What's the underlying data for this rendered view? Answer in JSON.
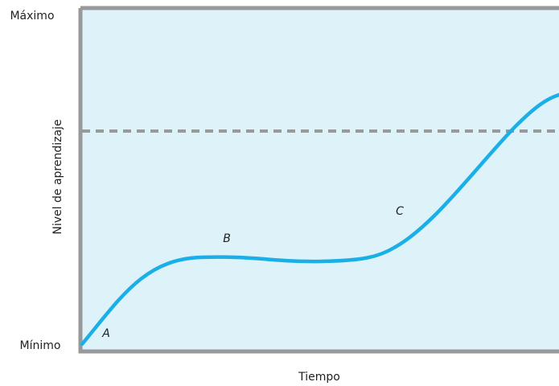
{
  "axis": {
    "y_title": "Nivel de aprendizaje",
    "x_title": "Tiempo",
    "y_max_label": "Máximo",
    "y_min_label": "Mínimo"
  },
  "annotations": [
    "A",
    "B",
    "C"
  ]
}
